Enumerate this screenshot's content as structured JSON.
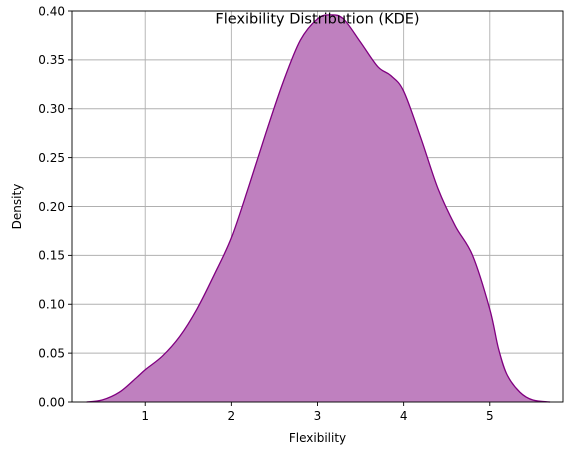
{
  "chart_data": {
    "type": "area",
    "title": "Flexibility Distribution (KDE)",
    "xlabel": "Flexibility",
    "ylabel": "Density",
    "xlim": [
      0.15,
      5.85
    ],
    "ylim": [
      0,
      0.4
    ],
    "xticks": [
      1,
      2,
      3,
      4,
      5
    ],
    "yticks": [
      0.0,
      0.05,
      0.1,
      0.15,
      0.2,
      0.25,
      0.3,
      0.35,
      0.4
    ],
    "grid": true,
    "fill_color": "#bf80bf",
    "line_color": "#800080",
    "series": [
      {
        "x": [
          0.32,
          0.5,
          0.7,
          0.9,
          1.0,
          1.2,
          1.4,
          1.6,
          1.8,
          2.0,
          2.2,
          2.4,
          2.6,
          2.8,
          3.0,
          3.15,
          3.3,
          3.5,
          3.7,
          3.85,
          4.0,
          4.2,
          4.4,
          4.6,
          4.8,
          5.0,
          5.1,
          5.2,
          5.35,
          5.5,
          5.7
        ],
        "y": [
          0.0,
          0.002,
          0.01,
          0.025,
          0.033,
          0.047,
          0.067,
          0.095,
          0.13,
          0.168,
          0.22,
          0.275,
          0.327,
          0.37,
          0.392,
          0.396,
          0.392,
          0.368,
          0.343,
          0.334,
          0.318,
          0.27,
          0.218,
          0.18,
          0.15,
          0.095,
          0.055,
          0.028,
          0.01,
          0.002,
          0.0
        ]
      }
    ]
  }
}
